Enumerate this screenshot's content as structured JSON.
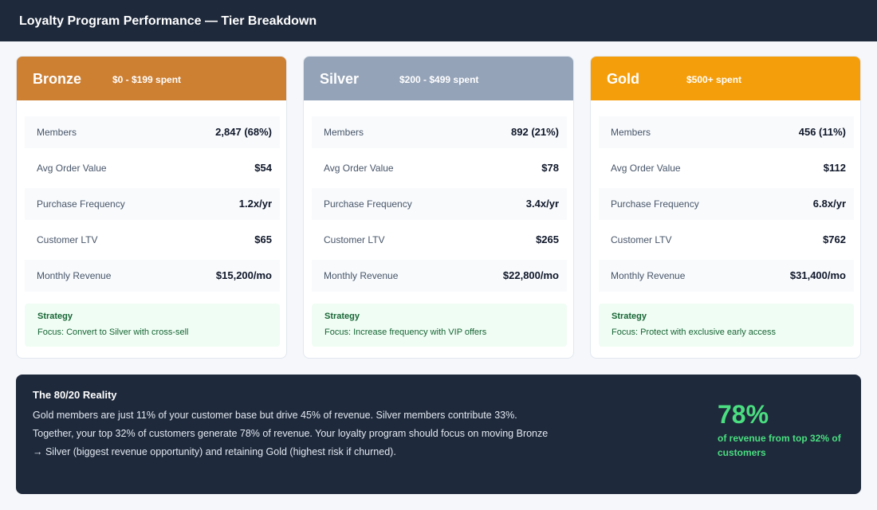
{
  "header": {
    "title": "Loyalty Program Performance — Tier Breakdown"
  },
  "tiers": [
    {
      "name": "Bronze",
      "range": "$0 - $199 spent",
      "color": "#cd7f32",
      "metrics": [
        {
          "label": "Members",
          "value": "2,847 (68%)"
        },
        {
          "label": "Avg Order Value",
          "value": "$54"
        },
        {
          "label": "Purchase Frequency",
          "value": "1.2x/yr"
        },
        {
          "label": "Customer LTV",
          "value": "$65"
        },
        {
          "label": "Monthly Revenue",
          "value": "$15,200/mo"
        }
      ],
      "strategy_title": "Strategy",
      "strategy_text": "Focus: Convert to Silver with cross-sell"
    },
    {
      "name": "Silver",
      "range": "$200 - $499 spent",
      "color": "#94a3b8",
      "metrics": [
        {
          "label": "Members",
          "value": "892 (21%)"
        },
        {
          "label": "Avg Order Value",
          "value": "$78"
        },
        {
          "label": "Purchase Frequency",
          "value": "3.4x/yr"
        },
        {
          "label": "Customer LTV",
          "value": "$265"
        },
        {
          "label": "Monthly Revenue",
          "value": "$22,800/mo"
        }
      ],
      "strategy_title": "Strategy",
      "strategy_text": "Focus: Increase frequency with VIP offers"
    },
    {
      "name": "Gold",
      "range": "$500+ spent",
      "color": "#f59e0b",
      "metrics": [
        {
          "label": "Members",
          "value": "456 (11%)"
        },
        {
          "label": "Avg Order Value",
          "value": "$112"
        },
        {
          "label": "Purchase Frequency",
          "value": "6.8x/yr"
        },
        {
          "label": "Customer LTV",
          "value": "$762"
        },
        {
          "label": "Monthly Revenue",
          "value": "$31,400/mo"
        }
      ],
      "strategy_title": "Strategy",
      "strategy_text": "Focus: Protect with exclusive early access"
    }
  ],
  "insight": {
    "title": "The 80/20 Reality",
    "body": "Gold members are just 11% of your customer base but drive 45% of revenue. Silver members contribute 33%. Together, your top 32% of customers generate 78% of revenue. Your loyalty program should focus on moving Bronze → Silver (biggest revenue opportunity) and retaining Gold (highest risk if churned).",
    "stat_value": "78%",
    "stat_label": "of revenue from top 32% of customers"
  }
}
